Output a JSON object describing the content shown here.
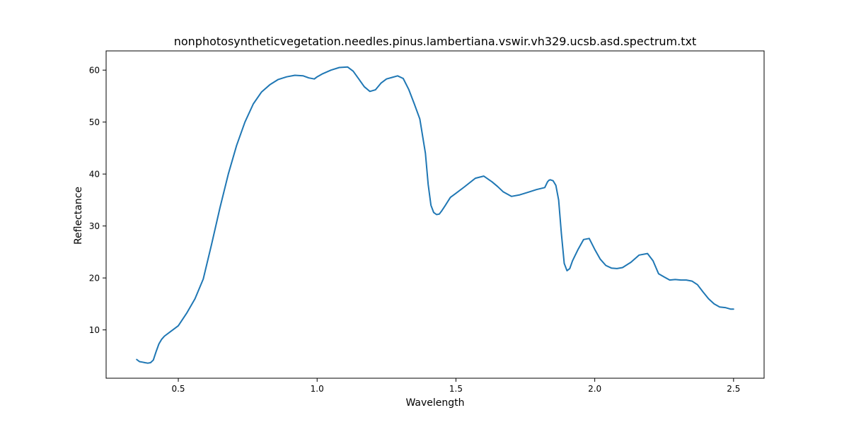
{
  "chart_data": {
    "type": "line",
    "title": "nonphotosyntheticvegetation.needles.pinus.lambertiana.vswir.vh329.ucsb.asd.spectrum.txt",
    "xlabel": "Wavelength",
    "ylabel": "Reflectance",
    "xlim": [
      0.24,
      2.61
    ],
    "ylim": [
      0.7,
      63.7
    ],
    "xticks": [
      0.5,
      1.0,
      1.5,
      2.0,
      2.5
    ],
    "xtick_labels": [
      "0.5",
      "1.0",
      "1.5",
      "2.0",
      "2.5"
    ],
    "yticks": [
      10,
      20,
      30,
      40,
      50,
      60
    ],
    "ytick_labels": [
      "10",
      "20",
      "30",
      "40",
      "50",
      "60"
    ],
    "grid": false,
    "series": [
      {
        "color": "#1f77b4",
        "x": [
          0.35,
          0.36,
          0.37,
          0.38,
          0.39,
          0.4,
          0.41,
          0.42,
          0.43,
          0.44,
          0.45,
          0.47,
          0.5,
          0.53,
          0.56,
          0.59,
          0.62,
          0.65,
          0.68,
          0.71,
          0.74,
          0.77,
          0.8,
          0.83,
          0.86,
          0.89,
          0.92,
          0.95,
          0.97,
          0.99,
          1.0,
          1.02,
          1.05,
          1.08,
          1.11,
          1.13,
          1.15,
          1.17,
          1.19,
          1.21,
          1.23,
          1.25,
          1.27,
          1.29,
          1.31,
          1.33,
          1.35,
          1.37,
          1.39,
          1.4,
          1.41,
          1.42,
          1.43,
          1.44,
          1.45,
          1.46,
          1.48,
          1.5,
          1.53,
          1.57,
          1.6,
          1.63,
          1.65,
          1.67,
          1.7,
          1.73,
          1.76,
          1.79,
          1.82,
          1.83,
          1.835,
          1.84,
          1.85,
          1.86,
          1.87,
          1.88,
          1.89,
          1.9,
          1.91,
          1.92,
          1.94,
          1.96,
          1.98,
          2.0,
          2.02,
          2.04,
          2.06,
          2.08,
          2.1,
          2.13,
          2.16,
          2.19,
          2.21,
          2.23,
          2.25,
          2.27,
          2.29,
          2.31,
          2.33,
          2.35,
          2.37,
          2.39,
          2.41,
          2.43,
          2.45,
          2.47,
          2.49,
          2.5
        ],
        "y": [
          4.3,
          3.9,
          3.8,
          3.7,
          3.6,
          3.7,
          4.2,
          5.8,
          7.3,
          8.2,
          8.8,
          9.6,
          10.8,
          13.2,
          16.0,
          19.8,
          26.5,
          33.5,
          40.0,
          45.5,
          50.0,
          53.5,
          55.8,
          57.2,
          58.2,
          58.7,
          59.0,
          58.9,
          58.5,
          58.3,
          58.7,
          59.3,
          60.0,
          60.5,
          60.6,
          59.8,
          58.3,
          56.8,
          55.9,
          56.2,
          57.5,
          58.3,
          58.6,
          58.9,
          58.4,
          56.3,
          53.5,
          50.6,
          44.0,
          38.0,
          34.0,
          32.6,
          32.2,
          32.3,
          33.0,
          33.8,
          35.5,
          36.3,
          37.5,
          39.2,
          39.6,
          38.5,
          37.6,
          36.6,
          35.7,
          36.0,
          36.5,
          37.0,
          37.4,
          38.5,
          38.8,
          38.9,
          38.7,
          37.8,
          35.0,
          28.5,
          22.8,
          21.4,
          21.8,
          23.3,
          25.5,
          27.4,
          27.6,
          25.5,
          23.6,
          22.4,
          21.9,
          21.8,
          22.0,
          23.0,
          24.4,
          24.7,
          23.3,
          20.8,
          20.2,
          19.6,
          19.7,
          19.6,
          19.6,
          19.4,
          18.7,
          17.3,
          16.0,
          15.0,
          14.4,
          14.3,
          14.0,
          14.0
        ]
      }
    ]
  }
}
